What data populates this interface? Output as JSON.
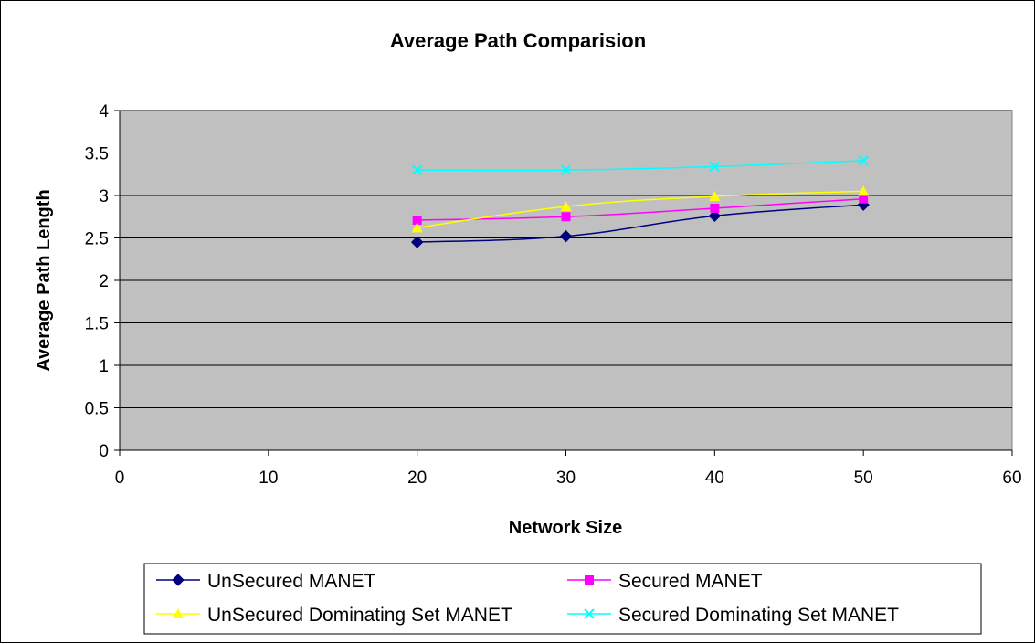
{
  "chart_data": {
    "type": "line",
    "title": "Average Path Comparision",
    "xlabel": "Network Size",
    "ylabel": "Average Path Length",
    "xlim": [
      0,
      60
    ],
    "ylim": [
      0,
      4
    ],
    "x_ticks": [
      "0",
      "10",
      "20",
      "30",
      "40",
      "50",
      "60"
    ],
    "y_ticks": [
      "0",
      "0.5",
      "1",
      "1.5",
      "2",
      "2.5",
      "3",
      "3.5",
      "4"
    ],
    "grid": "horizontal major gridlines",
    "plot_background": "#C0C0C0",
    "legend_position": "bottom",
    "series": [
      {
        "name": "UnSecured MANET",
        "color": "#000080",
        "marker": "diamond",
        "x": [
          20,
          30,
          40,
          50
        ],
        "y": [
          2.45,
          2.52,
          2.76,
          2.89
        ]
      },
      {
        "name": "Secured MANET",
        "color": "#FF00FF",
        "marker": "square",
        "x": [
          20,
          30,
          40,
          50
        ],
        "y": [
          2.71,
          2.75,
          2.85,
          2.96
        ]
      },
      {
        "name": "UnSecured Dominating Set MANET",
        "color": "#FFFF00",
        "marker": "triangle",
        "x": [
          20,
          30,
          40,
          50
        ],
        "y": [
          2.62,
          2.87,
          2.99,
          3.05
        ]
      },
      {
        "name": "Secured Dominating Set MANET",
        "color": "#00FFFF",
        "marker": "x",
        "x": [
          20,
          30,
          40,
          50
        ],
        "y": [
          3.3,
          3.3,
          3.34,
          3.41
        ]
      }
    ]
  }
}
